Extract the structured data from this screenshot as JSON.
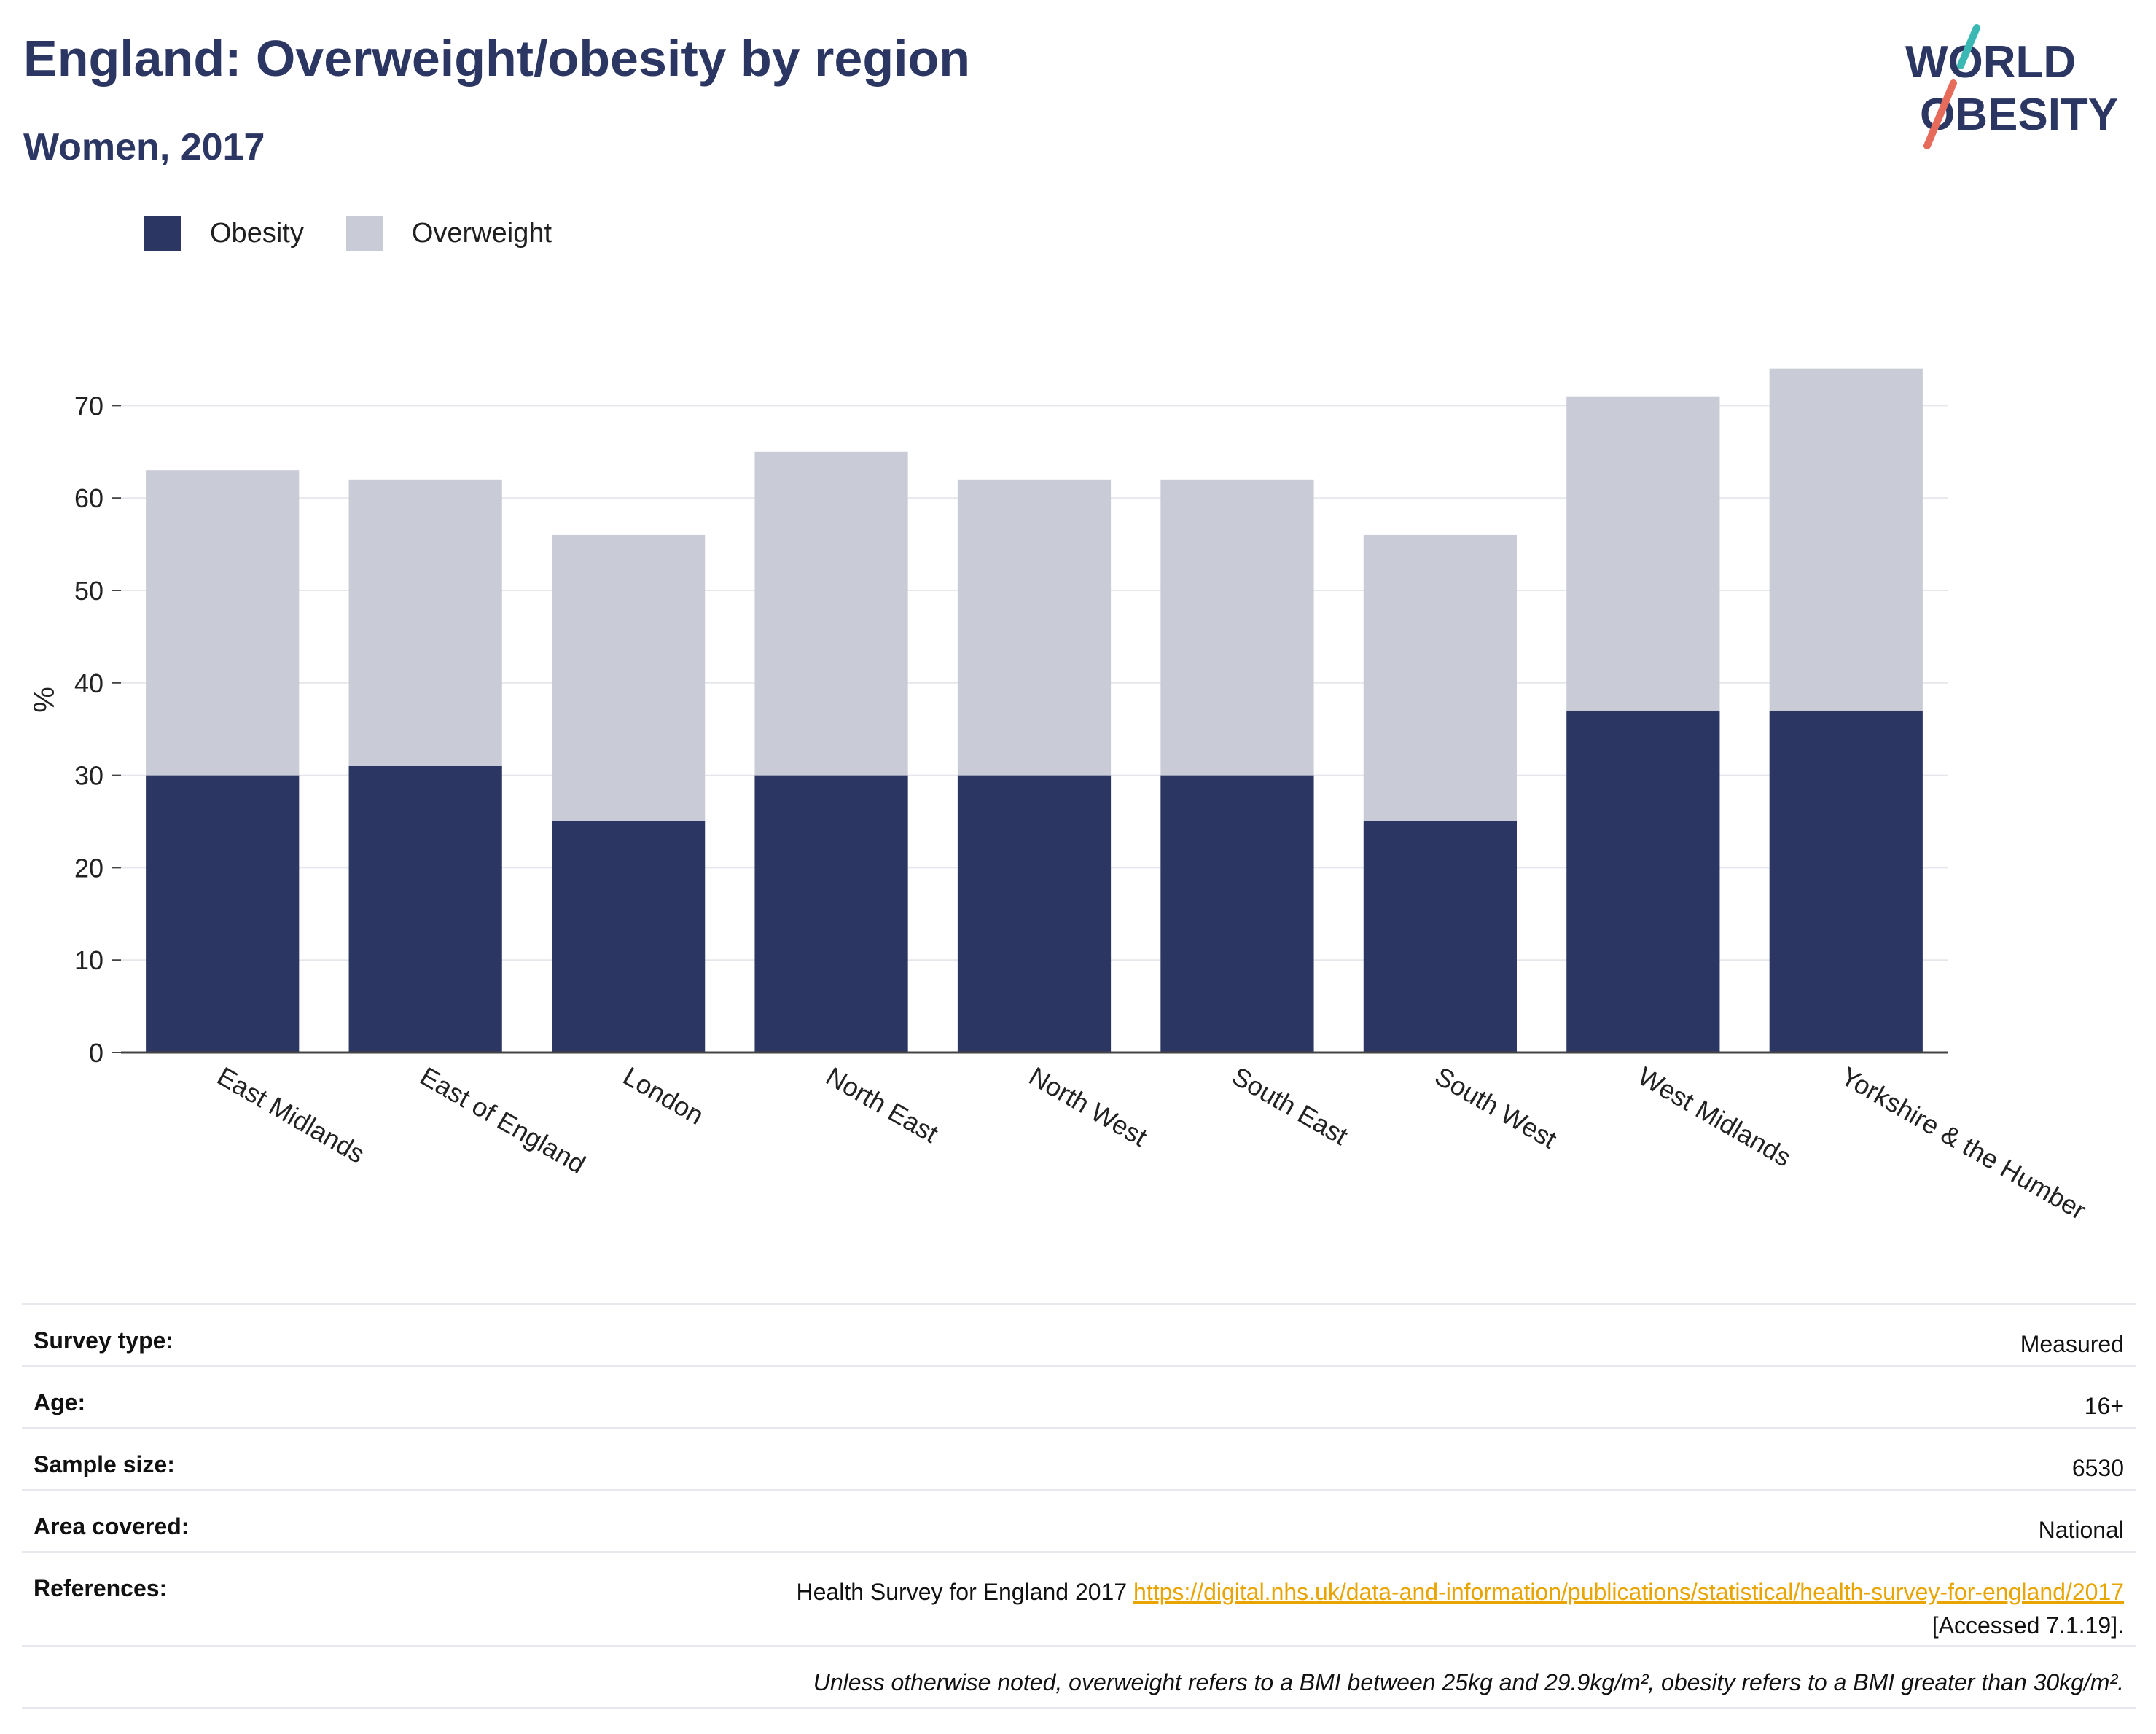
{
  "header": {
    "title": "England: Overweight/obesity by region",
    "subtitle": "Women, 2017"
  },
  "logo": {
    "line1": "WORLD",
    "line2": "OBESITY"
  },
  "legend": {
    "items": [
      "Obesity",
      "Overweight"
    ]
  },
  "colors": {
    "obesity": "#2b3663",
    "overweight": "#c9cbd6",
    "axis": "#444444",
    "grid": "#e6e7ec",
    "link": "#e8a400",
    "logo_teal": "#3bb8b4",
    "logo_coral": "#e66b5b"
  },
  "chart_data": {
    "type": "bar",
    "stacked": true,
    "categories": [
      "East Midlands",
      "East of England",
      "London",
      "North East",
      "North West",
      "South East",
      "South West",
      "West Midlands",
      "Yorkshire & the Humber"
    ],
    "series": [
      {
        "name": "Obesity",
        "values": [
          30,
          31,
          25,
          30,
          30,
          30,
          25,
          37,
          37
        ]
      },
      {
        "name": "Overweight",
        "values": [
          33,
          31,
          31,
          35,
          32,
          32,
          31,
          34,
          37
        ]
      }
    ],
    "ylabel": "%",
    "yticks": [
      0,
      10,
      20,
      30,
      40,
      50,
      60,
      70
    ],
    "ylim": [
      0,
      75
    ],
    "grid": true,
    "legend_position": "top-left"
  },
  "meta": {
    "survey_type": {
      "label": "Survey type:",
      "value": "Measured"
    },
    "age": {
      "label": "Age:",
      "value": "16+"
    },
    "sample_size": {
      "label": "Sample size:",
      "value": "6530"
    },
    "area": {
      "label": "Area covered:",
      "value": "National"
    },
    "references": {
      "label": "References:",
      "prefix": "Health Survey for England 2017 ",
      "link": "https://digital.nhs.uk/data-and-information/publications/statistical/health-survey-for-england/2017",
      "suffix": "[Accessed 7.1.19]."
    },
    "note": "Unless otherwise noted, overweight refers to a BMI between 25kg and 29.9kg/m², obesity refers to a BMI greater than 30kg/m²."
  }
}
